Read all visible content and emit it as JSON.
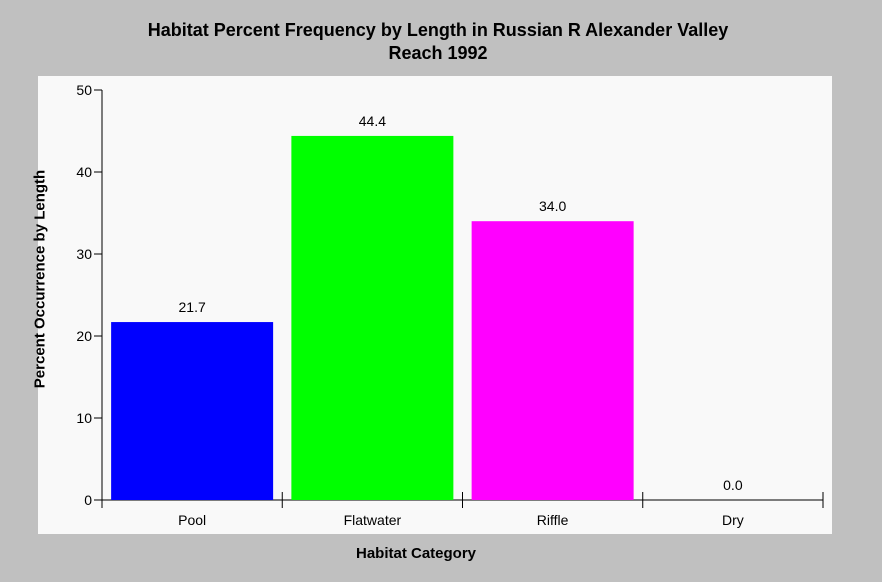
{
  "chart_data": {
    "type": "bar",
    "title": [
      "Habitat Percent Frequency by Length in Russian R Alexander Valley",
      "Reach 1992"
    ],
    "xlabel": "Habitat Category",
    "ylabel": "Percent Occurrence by Length",
    "categories": [
      "Pool",
      "Flatwater",
      "Riffle",
      "Dry"
    ],
    "values": [
      21.7,
      44.4,
      34.0,
      0.0
    ],
    "value_labels": [
      "21.7",
      "44.4",
      "34.0",
      "0.0"
    ],
    "colors": [
      "#0000ff",
      "#00ff00",
      "#ff00ff",
      "#888888"
    ],
    "ylim": [
      0,
      50
    ],
    "yticks": [
      0,
      10,
      20,
      30,
      40,
      50
    ],
    "grid": false,
    "legend": "none"
  }
}
